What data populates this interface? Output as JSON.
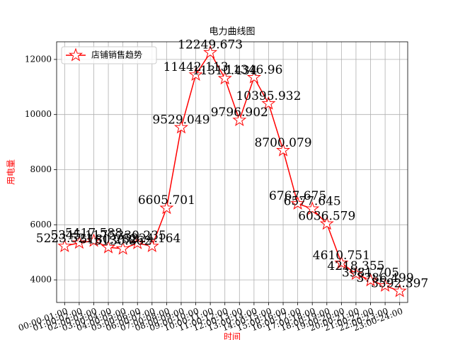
{
  "chart_data": {
    "type": "line",
    "title": "电力曲线图",
    "xlabel": "时间",
    "ylabel": "用电量",
    "categories": [
      "00:00-01:00",
      "01:00-02:00",
      "02:00-03:00",
      "03:00-04:00",
      "04:00-05:00",
      "05:00-06:00",
      "06:00-07:00",
      "07:00-08:00",
      "08:00-09:00",
      "09:00-10:00",
      "10:00-11:00",
      "11:00-12:00",
      "12:00-13:00",
      "13:00-14:00",
      "14:00-15:00",
      "15:00-16:00",
      "16:00-17:00",
      "17:00-18:00",
      "18:00-19:00",
      "19:00-20:00",
      "20:00-21:00",
      "21:00-22:00",
      "22:00-23:00",
      "23:00-24:00"
    ],
    "series": [
      {
        "name": "店铺销售趋势",
        "color": "#ff0000",
        "values": [
          5223.521,
          5345.117,
          5417.588,
          5180.282,
          5130.862,
          5330.235,
          5224.164,
          6605.701,
          9529.049,
          11442.113,
          12249.673,
          11310.434,
          9796.902,
          11346.96,
          10395.932,
          8700.079,
          6767.675,
          6577.645,
          6036.579,
          4610.751,
          4218.355,
          3981.705,
          3786.499,
          3592.397
        ]
      }
    ],
    "ylim": [
      3180,
      12640
    ],
    "yticks": [
      4000,
      6000,
      8000,
      10000,
      12000
    ],
    "grid": true,
    "legend": "upper left"
  }
}
